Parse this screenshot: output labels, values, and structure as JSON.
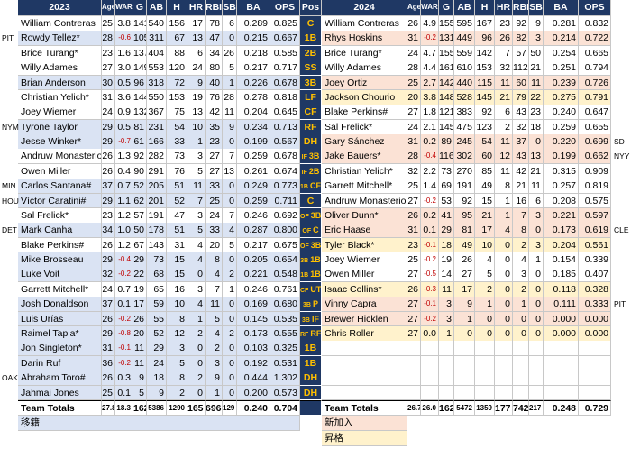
{
  "columns": [
    "Age",
    "WAR",
    "G",
    "AB",
    "H",
    "HR",
    "RBI",
    "SB",
    "BA",
    "OPS"
  ],
  "left": {
    "year": "2023",
    "rows": [
      {
        "name": "William Contreras",
        "cells": [
          "25",
          "3.8",
          "141",
          "540",
          "156",
          "17",
          "78",
          "6",
          "0.289",
          "0.825"
        ]
      },
      {
        "name": "Rowdy Tellez*",
        "team": "PIT",
        "status": "moved",
        "cells": [
          "28",
          "-0.6",
          "105",
          "311",
          "67",
          "13",
          "47",
          "0",
          "0.215",
          "0.667"
        ]
      },
      {
        "name": "Brice Turang*",
        "cells": [
          "23",
          "1.6",
          "137",
          "404",
          "88",
          "6",
          "34",
          "26",
          "0.218",
          "0.585"
        ]
      },
      {
        "name": "Willy Adames",
        "cells": [
          "27",
          "3.0",
          "149",
          "553",
          "120",
          "24",
          "80",
          "5",
          "0.217",
          "0.717"
        ]
      },
      {
        "name": "Brian Anderson",
        "status": "moved",
        "cells": [
          "30",
          "0.5",
          "96",
          "318",
          "72",
          "9",
          "40",
          "1",
          "0.226",
          "0.678"
        ]
      },
      {
        "name": "Christian Yelich*",
        "cells": [
          "31",
          "3.6",
          "144",
          "550",
          "153",
          "19",
          "76",
          "28",
          "0.278",
          "0.818"
        ]
      },
      {
        "name": "Joey Wiemer",
        "cells": [
          "24",
          "0.9",
          "132",
          "367",
          "75",
          "13",
          "42",
          "11",
          "0.204",
          "0.645"
        ]
      },
      {
        "name": "Tyrone Taylor",
        "team": "NYM",
        "status": "moved",
        "cells": [
          "29",
          "0.5",
          "81",
          "231",
          "54",
          "10",
          "35",
          "9",
          "0.234",
          "0.713"
        ]
      },
      {
        "name": "Jesse Winker*",
        "status": "moved",
        "cells": [
          "29",
          "-0.7",
          "61",
          "166",
          "33",
          "1",
          "23",
          "0",
          "0.199",
          "0.567"
        ]
      },
      {
        "name": "Andruw Monasterio",
        "cells": [
          "26",
          "1.3",
          "92",
          "282",
          "73",
          "3",
          "27",
          "7",
          "0.259",
          "0.678"
        ]
      },
      {
        "name": "Owen Miller",
        "cells": [
          "26",
          "0.4",
          "90",
          "291",
          "76",
          "5",
          "27",
          "13",
          "0.261",
          "0.674"
        ]
      },
      {
        "name": "Carlos Santana#",
        "team": "MIN",
        "status": "moved",
        "cells": [
          "37",
          "0.7",
          "52",
          "205",
          "51",
          "11",
          "33",
          "0",
          "0.249",
          "0.773"
        ]
      },
      {
        "name": "Víctor Caratini#",
        "team": "HOU",
        "status": "moved",
        "cells": [
          "29",
          "1.1",
          "62",
          "201",
          "52",
          "7",
          "25",
          "0",
          "0.259",
          "0.711"
        ]
      },
      {
        "name": "Sal Frelick*",
        "cells": [
          "23",
          "1.2",
          "57",
          "191",
          "47",
          "3",
          "24",
          "7",
          "0.246",
          "0.692"
        ]
      },
      {
        "name": "Mark Canha",
        "team": "DET",
        "status": "moved",
        "cells": [
          "34",
          "1.0",
          "50",
          "178",
          "51",
          "5",
          "33",
          "4",
          "0.287",
          "0.800"
        ]
      },
      {
        "name": "Blake Perkins#",
        "cells": [
          "26",
          "1.2",
          "67",
          "143",
          "31",
          "4",
          "20",
          "5",
          "0.217",
          "0.675"
        ]
      },
      {
        "name": "Mike Brosseau",
        "status": "moved",
        "cells": [
          "29",
          "-0.4",
          "29",
          "73",
          "15",
          "4",
          "8",
          "0",
          "0.205",
          "0.654"
        ]
      },
      {
        "name": "Luke Voit",
        "status": "moved",
        "cells": [
          "32",
          "-0.2",
          "22",
          "68",
          "15",
          "0",
          "4",
          "2",
          "0.221",
          "0.548"
        ]
      },
      {
        "name": "Garrett Mitchell*",
        "cells": [
          "24",
          "0.7",
          "19",
          "65",
          "16",
          "3",
          "7",
          "1",
          "0.246",
          "0.761"
        ]
      },
      {
        "name": "Josh Donaldson",
        "status": "moved",
        "cells": [
          "37",
          "0.1",
          "17",
          "59",
          "10",
          "4",
          "11",
          "0",
          "0.169",
          "0.680"
        ]
      },
      {
        "name": "Luis Urías",
        "status": "moved",
        "cells": [
          "26",
          "-0.2",
          "26",
          "55",
          "8",
          "1",
          "5",
          "0",
          "0.145",
          "0.535"
        ]
      },
      {
        "name": "Raimel Tapia*",
        "status": "moved",
        "cells": [
          "29",
          "-0.8",
          "20",
          "52",
          "12",
          "2",
          "4",
          "2",
          "0.173",
          "0.555"
        ]
      },
      {
        "name": "Jon Singleton*",
        "status": "moved",
        "cells": [
          "31",
          "-0.1",
          "11",
          "29",
          "3",
          "0",
          "2",
          "0",
          "0.103",
          "0.325"
        ]
      },
      {
        "name": "Darin Ruf",
        "status": "moved",
        "cells": [
          "36",
          "-0.2",
          "11",
          "24",
          "5",
          "0",
          "3",
          "0",
          "0.192",
          "0.531"
        ]
      },
      {
        "name": "Abraham Toro#",
        "team": "OAK",
        "status": "moved",
        "cells": [
          "26",
          "0.3",
          "9",
          "18",
          "8",
          "2",
          "9",
          "0",
          "0.444",
          "1.302"
        ]
      },
      {
        "name": "Jahmai Jones",
        "status": "moved",
        "cells": [
          "25",
          "0.1",
          "5",
          "9",
          "2",
          "0",
          "1",
          "0",
          "0.200",
          "0.573"
        ]
      }
    ],
    "totals": {
      "name": "Team Totals",
      "cells": [
        "27.8",
        "18.3",
        "162",
        "5386",
        "1290",
        "165",
        "696",
        "129",
        "0.240",
        "0.704"
      ]
    }
  },
  "pos": {
    "header": "Pos",
    "rows": [
      [
        "C"
      ],
      [
        "1B"
      ],
      [
        "2B"
      ],
      [
        "SS"
      ],
      [
        "3B"
      ],
      [
        "LF"
      ],
      [
        "CF"
      ],
      [
        "RF"
      ],
      [
        "DH"
      ],
      [
        "IF",
        "3B"
      ],
      [
        "IF",
        "2B"
      ],
      [
        "1B",
        "CF"
      ],
      [
        "C"
      ],
      [
        "OF",
        "3B"
      ],
      [
        "OF",
        "C"
      ],
      [
        "OF",
        "3B"
      ],
      [
        "3B",
        "1B"
      ],
      [
        "1B",
        "1B"
      ],
      [
        "CF",
        "UT"
      ],
      [
        "3B",
        "P"
      ],
      [
        "3B",
        "IF"
      ],
      [
        "RF",
        "RF"
      ],
      [
        "1B"
      ],
      [
        "1B"
      ],
      [
        "DH"
      ],
      [
        "DH"
      ]
    ]
  },
  "right": {
    "year": "2024",
    "rows": [
      {
        "name": "William Contreras",
        "cells": [
          "26",
          "4.9",
          "155",
          "595",
          "167",
          "23",
          "92",
          "9",
          "0.281",
          "0.832"
        ]
      },
      {
        "name": "Rhys Hoskins",
        "status": "new",
        "cells": [
          "31",
          "-0.2",
          "131",
          "449",
          "96",
          "26",
          "82",
          "3",
          "0.214",
          "0.722"
        ]
      },
      {
        "name": "Brice Turang*",
        "cells": [
          "24",
          "4.7",
          "155",
          "559",
          "142",
          "7",
          "57",
          "50",
          "0.254",
          "0.665"
        ]
      },
      {
        "name": "Willy Adames",
        "cells": [
          "28",
          "4.4",
          "161",
          "610",
          "153",
          "32",
          "112",
          "21",
          "0.251",
          "0.794"
        ]
      },
      {
        "name": "Joey Ortiz",
        "status": "new",
        "cells": [
          "25",
          "2.7",
          "142",
          "440",
          "115",
          "11",
          "60",
          "11",
          "0.239",
          "0.726"
        ]
      },
      {
        "name": "Jackson Chourio",
        "status": "promoted",
        "cells": [
          "20",
          "3.8",
          "148",
          "528",
          "145",
          "21",
          "79",
          "22",
          "0.275",
          "0.791"
        ]
      },
      {
        "name": "Blake Perkins#",
        "cells": [
          "27",
          "1.8",
          "121",
          "383",
          "92",
          "6",
          "43",
          "23",
          "0.240",
          "0.647"
        ]
      },
      {
        "name": "Sal Frelick*",
        "cells": [
          "24",
          "2.1",
          "145",
          "475",
          "123",
          "2",
          "32",
          "18",
          "0.259",
          "0.655"
        ]
      },
      {
        "name": "Gary Sánchez",
        "team": "SD",
        "status": "new",
        "cells": [
          "31",
          "0.2",
          "89",
          "245",
          "54",
          "11",
          "37",
          "0",
          "0.220",
          "0.699"
        ]
      },
      {
        "name": "Jake Bauers*",
        "team": "NYY",
        "status": "new",
        "cells": [
          "28",
          "-0.4",
          "116",
          "302",
          "60",
          "12",
          "43",
          "13",
          "0.199",
          "0.662"
        ]
      },
      {
        "name": "Christian Yelich*",
        "cells": [
          "32",
          "2.2",
          "73",
          "270",
          "85",
          "11",
          "42",
          "21",
          "0.315",
          "0.909"
        ]
      },
      {
        "name": "Garrett Mitchell*",
        "cells": [
          "25",
          "1.4",
          "69",
          "191",
          "49",
          "8",
          "21",
          "11",
          "0.257",
          "0.819"
        ]
      },
      {
        "name": "Andruw Monasterio",
        "cells": [
          "27",
          "-0.2",
          "53",
          "92",
          "15",
          "1",
          "16",
          "6",
          "0.208",
          "0.575"
        ]
      },
      {
        "name": "Oliver Dunn*",
        "status": "new",
        "cells": [
          "26",
          "0.2",
          "41",
          "95",
          "21",
          "1",
          "7",
          "3",
          "0.221",
          "0.597"
        ]
      },
      {
        "name": "Eric Haase",
        "team": "CLE",
        "status": "new",
        "cells": [
          "31",
          "0.1",
          "29",
          "81",
          "17",
          "4",
          "8",
          "0",
          "0.173",
          "0.619"
        ]
      },
      {
        "name": "Tyler Black*",
        "status": "promoted",
        "cells": [
          "23",
          "-0.1",
          "18",
          "49",
          "10",
          "0",
          "2",
          "3",
          "0.204",
          "0.561"
        ]
      },
      {
        "name": "Joey Wiemer",
        "cells": [
          "25",
          "-0.2",
          "19",
          "26",
          "4",
          "0",
          "4",
          "1",
          "0.154",
          "0.339"
        ]
      },
      {
        "name": "Owen Miller",
        "cells": [
          "27",
          "-0.5",
          "14",
          "27",
          "5",
          "0",
          "3",
          "0",
          "0.185",
          "0.407"
        ]
      },
      {
        "name": "Isaac Collins*",
        "status": "promoted",
        "cells": [
          "26",
          "-0.3",
          "11",
          "17",
          "2",
          "0",
          "2",
          "0",
          "0.118",
          "0.328"
        ]
      },
      {
        "name": "Vinny Capra",
        "team": "PIT",
        "status": "new",
        "cells": [
          "27",
          "-0.1",
          "3",
          "9",
          "1",
          "0",
          "1",
          "0",
          "0.111",
          "0.333"
        ]
      },
      {
        "name": "Brewer Hicklen",
        "status": "new",
        "cells": [
          "27",
          "-0.2",
          "3",
          "1",
          "0",
          "0",
          "0",
          "0",
          "0.000",
          "0.000"
        ]
      },
      {
        "name": "Chris Roller",
        "status": "promoted",
        "cells": [
          "27",
          "0.0",
          "1",
          "0",
          "0",
          "0",
          "0",
          "0",
          "0.000",
          "0.000"
        ]
      }
    ],
    "totals": {
      "name": "Team Totals",
      "cells": [
        "26.7",
        "26.0",
        "162",
        "5472",
        "1359",
        "177",
        "742",
        "217",
        "0.248",
        "0.729"
      ]
    }
  },
  "legend": {
    "moved": "移籍",
    "new": "新加入",
    "promoted": "昇格"
  }
}
